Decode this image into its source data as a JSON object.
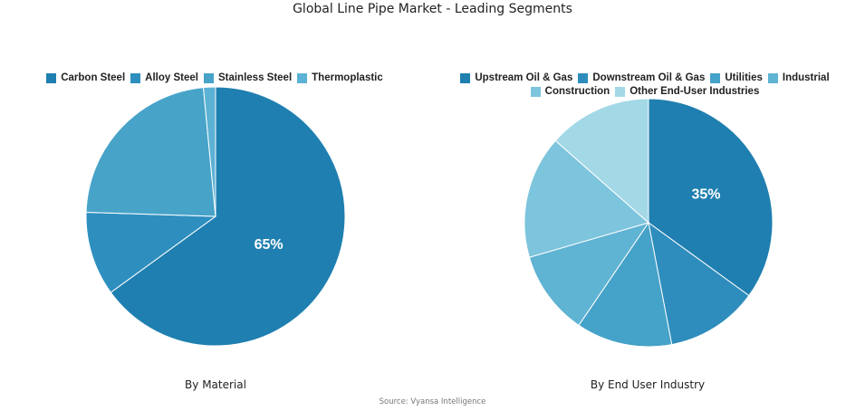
{
  "title": "Global Line Pipe Market - Leading Segments",
  "source": "Source: Vyansa Intelligence",
  "chart_data": [
    {
      "type": "pie",
      "caption": "By Material",
      "categories": [
        "Carbon Steel",
        "Alloy Steel",
        "Stainless Steel",
        "Thermoplastic"
      ],
      "values": [
        65,
        10.5,
        23,
        1.5
      ],
      "colors": [
        "#1f7fb0",
        "#2e8fbf",
        "#47a3c8",
        "#5cb2d4"
      ],
      "data_labels": [
        "65%",
        "",
        "",
        ""
      ],
      "legend_position": "top"
    },
    {
      "type": "pie",
      "caption": "By End User Industry",
      "categories": [
        "Upstream Oil & Gas",
        "Downstream Oil & Gas",
        "Utilities",
        "Industrial",
        "Construction",
        "Other End-User Industries"
      ],
      "values": [
        35,
        12,
        12.5,
        11,
        16,
        13.5
      ],
      "colors": [
        "#1f7fb0",
        "#2e8dbc",
        "#45a2c8",
        "#5fb3d3",
        "#7dc4dd",
        "#a3d8e7"
      ],
      "data_labels": [
        "35%",
        "",
        "",
        "",
        "",
        ""
      ],
      "legend_position": "top"
    }
  ]
}
